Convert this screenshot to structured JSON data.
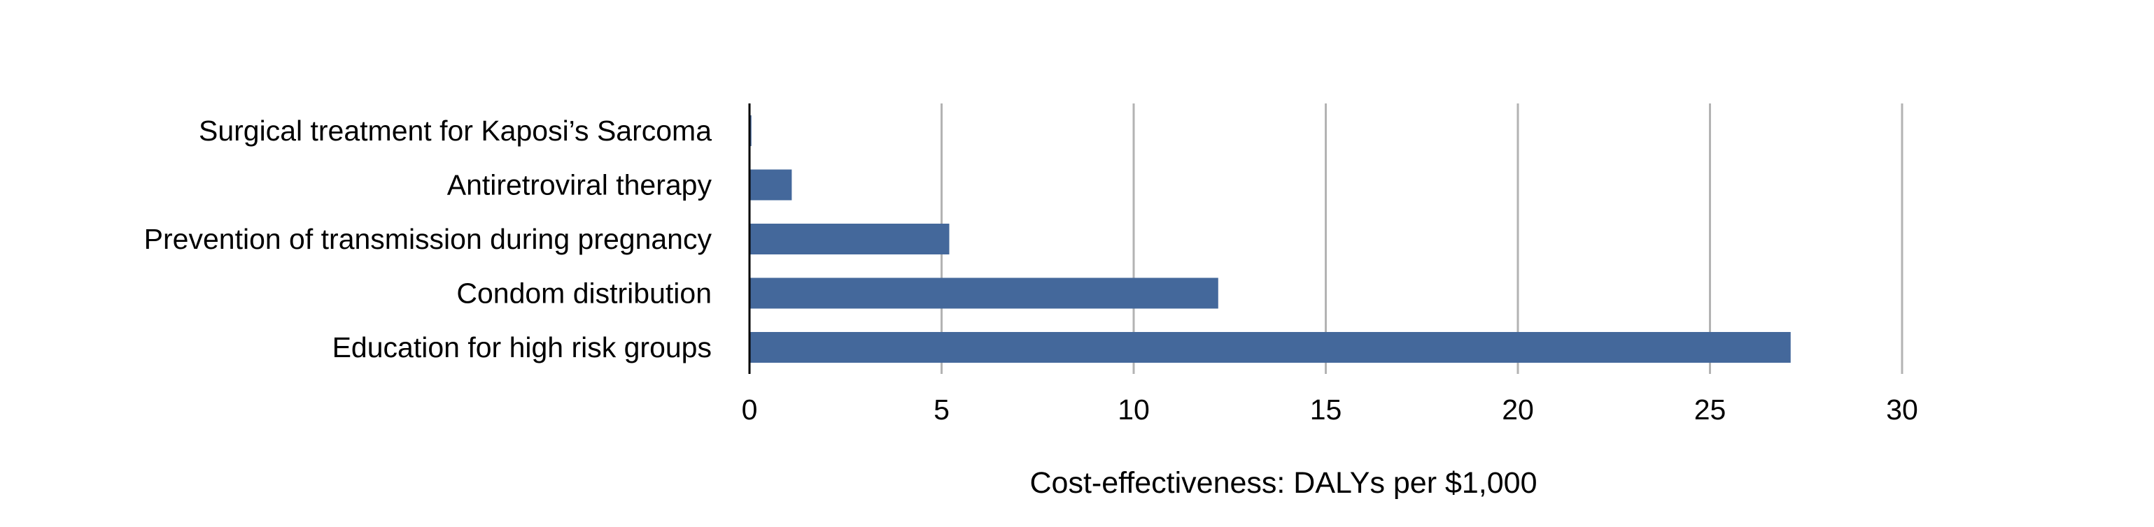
{
  "chart_data": {
    "type": "bar",
    "orientation": "horizontal",
    "categories": [
      "Surgical treatment for Kaposi’s Sarcoma",
      "Antiretroviral therapy",
      "Prevention of transmission during pregnancy",
      "Condom distribution",
      "Education for high risk groups"
    ],
    "values": [
      0.05,
      1.1,
      5.2,
      12.2,
      27.1
    ],
    "title": "",
    "xlabel": "Cost-effectiveness: DALYs per $1,000",
    "ylabel": "",
    "xlim": [
      0,
      30
    ],
    "xticks": [
      "0",
      "5",
      "10",
      "15",
      "20",
      "25",
      "30"
    ],
    "grid": "vertical",
    "legend": "none",
    "colors": {
      "bar": "#44689b",
      "grid": "#b3b3b3",
      "axis": "#000000"
    }
  }
}
